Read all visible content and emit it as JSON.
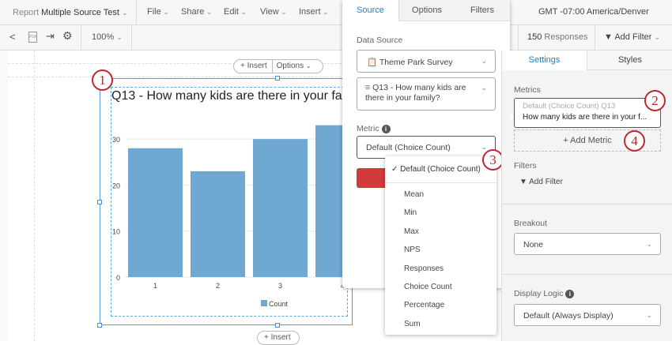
{
  "header": {
    "report_prefix": "Report",
    "report_name": "Multiple Source Test",
    "menus": [
      "File",
      "Share",
      "Edit",
      "View",
      "Insert"
    ],
    "timezone": "GMT -07:00 America/Denver"
  },
  "toolbar": {
    "zoom": "100%",
    "responses_count": "150",
    "responses_label": "Responses",
    "add_filter": "Add Filter"
  },
  "canvas": {
    "insert_label": "Insert",
    "options_label": "Options",
    "insert_bottom": "Insert"
  },
  "chart_data": {
    "type": "bar",
    "title": "Q13 - How many kids are there in your fa",
    "categories": [
      "1",
      "2",
      "3",
      "4"
    ],
    "series": [
      {
        "name": "Count",
        "values": [
          28,
          23,
          30,
          33
        ]
      }
    ],
    "yticks": [
      "0",
      "10",
      "20",
      "30"
    ],
    "ylim": [
      0,
      35
    ],
    "grid": true,
    "legend": "bottom",
    "color": "#6fa9d2"
  },
  "popup": {
    "tabs": [
      "Source",
      "Options",
      "Filters"
    ],
    "active_tab": "Source",
    "data_source_label": "Data Source",
    "survey": "Theme Park Survey",
    "question": "Q13 - How many kids are there in your family?",
    "metric_label": "Metric",
    "metric_value": "Default (Choice Count)"
  },
  "metric_dropdown": {
    "selected": "Default (Choice Count)",
    "options": [
      "Mean",
      "Min",
      "Max",
      "NPS",
      "Responses",
      "Choice Count",
      "Percentage",
      "Sum"
    ]
  },
  "settings": {
    "tabs": [
      "Settings",
      "Styles"
    ],
    "metrics_label": "Metrics",
    "metric_sub": "Default (Choice Count) Q13",
    "metric_main": "How many kids are there in your f...",
    "add_metric": "Add Metric",
    "filters_label": "Filters",
    "add_filter": "Add Filter",
    "breakout_label": "Breakout",
    "breakout_value": "None",
    "display_logic_label": "Display Logic",
    "display_logic_value": "Default (Always Display)"
  },
  "callouts": [
    "1",
    "2",
    "3",
    "4"
  ],
  "colors": {
    "accent": "#1a82c4",
    "callout": "#c0262d",
    "bar": "#6fa9d2",
    "danger": "#d33a3a"
  }
}
